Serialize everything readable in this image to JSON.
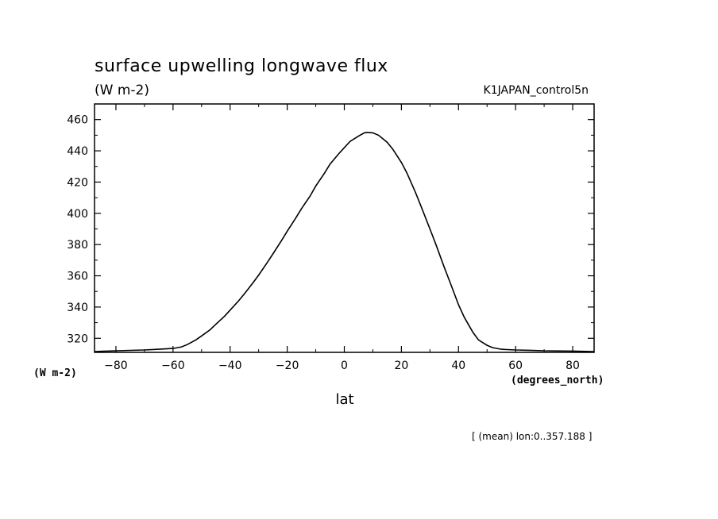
{
  "chart_data": {
    "type": "line",
    "title": "surface upwelling longwave flux",
    "units_label": "(W m-2)",
    "run_label": "K1JAPAN_control5n",
    "ylabel": "(W m-2)",
    "xlabel": "lat",
    "xunits": "(degrees_north)",
    "footnote": "[ (mean) lon:0..357.188 ]",
    "xlim": [
      -87.5,
      87.5
    ],
    "ylim": [
      311,
      470
    ],
    "xticks": [
      -80,
      -60,
      -40,
      -20,
      0,
      20,
      40,
      60,
      80
    ],
    "yticks": [
      320,
      340,
      360,
      380,
      400,
      420,
      440,
      460
    ],
    "grid": false,
    "series": [
      {
        "x": [
          -87.5,
          -80,
          -70,
          -65,
          -60,
          -57,
          -55,
          -52,
          -50,
          -47,
          -45,
          -42,
          -40,
          -37,
          -35,
          -32,
          -30,
          -27,
          -25,
          -22,
          -20,
          -17,
          -15,
          -12,
          -10,
          -7,
          -5,
          -2,
          0,
          2,
          5,
          7,
          8,
          10,
          12,
          15,
          17,
          20,
          22,
          25,
          27,
          30,
          32,
          35,
          37,
          40,
          42,
          45,
          47,
          50,
          52,
          55,
          57,
          60,
          65,
          70,
          80,
          87.5
        ],
        "y": [
          311.5,
          312.0,
          312.5,
          313.0,
          313.5,
          314.5,
          316.0,
          319.0,
          321.5,
          325.5,
          329.0,
          334.0,
          338.0,
          344.0,
          348.5,
          355.5,
          360.5,
          368.5,
          374.0,
          382.5,
          388.5,
          397.0,
          403.0,
          411.0,
          417.5,
          425.5,
          431.5,
          438.0,
          442.0,
          446.0,
          449.5,
          451.5,
          451.8,
          451.5,
          450.0,
          445.5,
          441.0,
          432.5,
          425.5,
          413.0,
          404.0,
          390.0,
          380.5,
          365.5,
          356.0,
          341.5,
          333.5,
          324.0,
          319.0,
          315.5,
          314.0,
          313.0,
          312.8,
          312.5,
          312.3,
          312.0,
          311.8,
          311.5
        ]
      }
    ]
  }
}
